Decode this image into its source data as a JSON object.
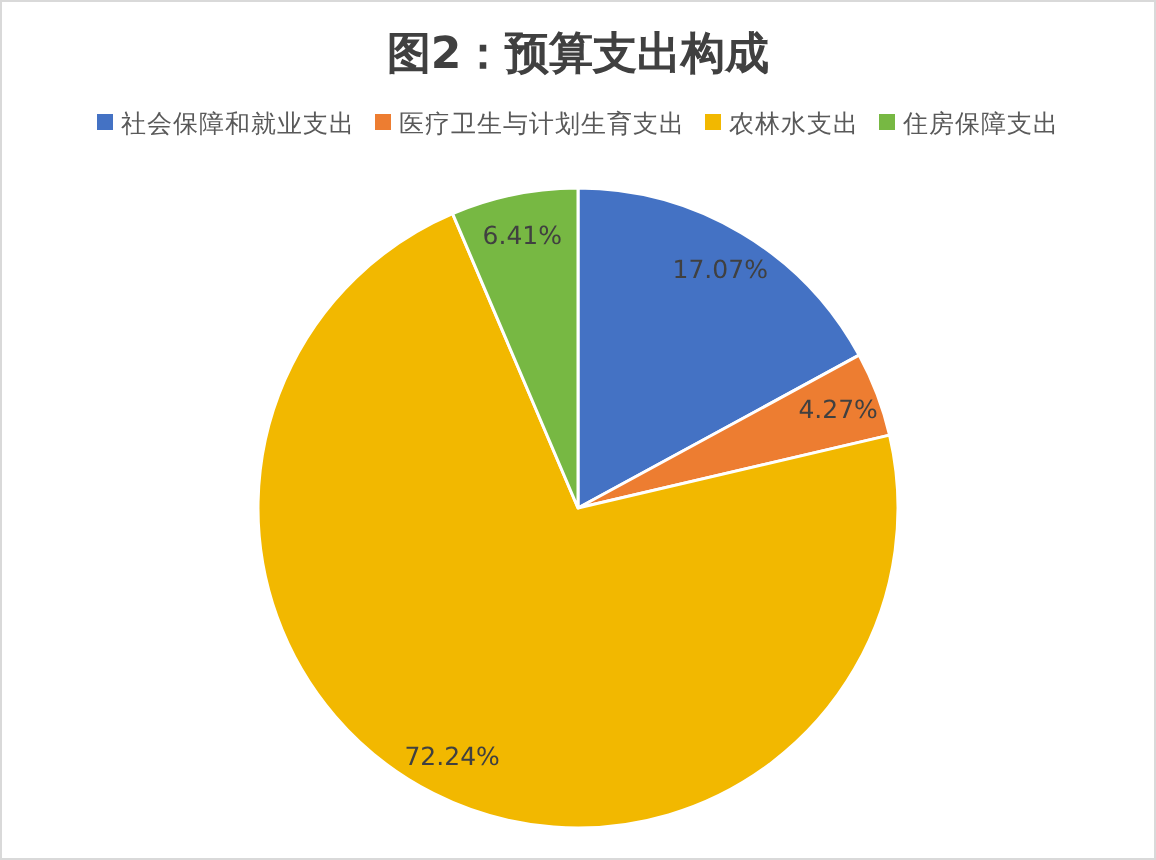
{
  "chart_data": {
    "type": "pie",
    "title": "图2：预算支出构成",
    "categories": [
      "社会保障和就业支出",
      "医疗卫生与计划生育支出",
      "农林水支出",
      "住房保障支出"
    ],
    "values": [
      17.07,
      4.27,
      72.24,
      6.41
    ],
    "colors": [
      "#4472c4",
      "#ed7d31",
      "#f2b800",
      "#77b843"
    ],
    "value_labels": [
      "17.07%",
      "4.27%",
      "72.24%",
      "6.41%"
    ],
    "legend": "top"
  }
}
